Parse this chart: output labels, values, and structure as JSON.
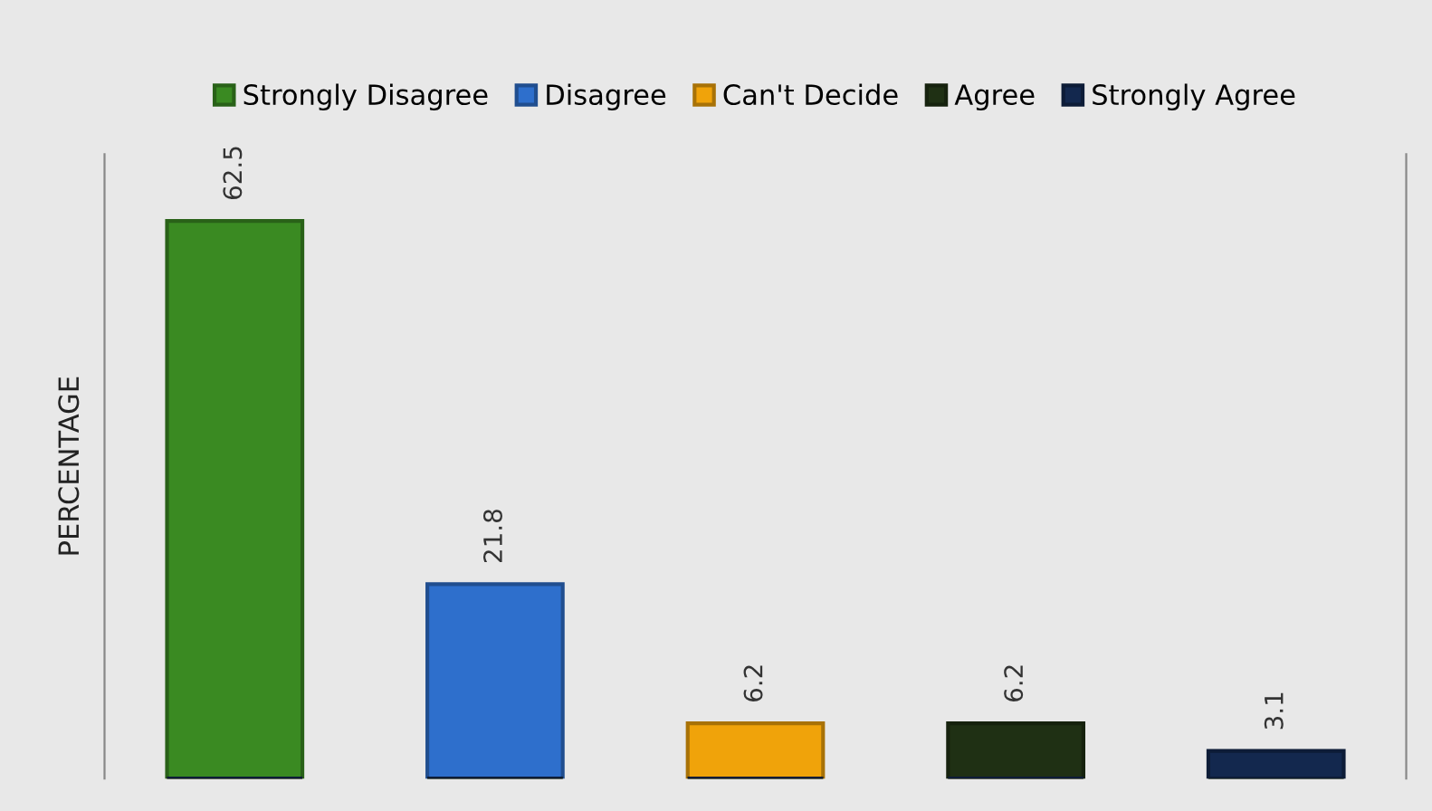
{
  "chart_data": {
    "type": "bar",
    "ylabel": "PERCENTAGE",
    "categories": [
      null,
      null,
      null,
      null,
      null
    ],
    "series": [
      {
        "name": "Strongly Disagree",
        "color": "#3a8a22",
        "values": [
          62.5,
          null,
          null,
          null,
          null
        ]
      },
      {
        "name": "Disagree",
        "color": "#2e6fcc",
        "values": [
          null,
          21.8,
          null,
          null,
          null
        ]
      },
      {
        "name": "Can't Decide",
        "color": "#f0a30a",
        "values": [
          null,
          null,
          6.2,
          null,
          null
        ]
      },
      {
        "name": "Agree",
        "color": "#1f3014",
        "values": [
          null,
          null,
          null,
          6.2,
          null
        ]
      },
      {
        "name": "Strongly Agree",
        "color": "#13284e",
        "values": [
          null,
          null,
          null,
          null,
          3.1
        ]
      }
    ],
    "stacked": true,
    "data_labels": true,
    "legend": "top",
    "grid": false,
    "tick_labels": false
  }
}
